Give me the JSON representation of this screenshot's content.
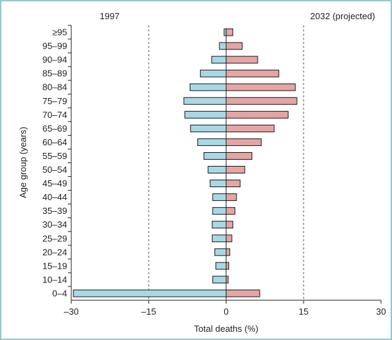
{
  "chart_data": {
    "type": "bar",
    "orientation": "horizontal",
    "categories": [
      "0–4",
      "10–14",
      "15–19",
      "20–24",
      "25–29",
      "30–34",
      "35–39",
      "40–44",
      "45–49",
      "50–54",
      "55–59",
      "60–64",
      "65–69",
      "70–74",
      "75–79",
      "80–84",
      "85–89",
      "90–94",
      "95–99",
      "≥95"
    ],
    "series": [
      {
        "name": "1997",
        "values": [
          -29.6,
          -2.6,
          -2.0,
          -2.2,
          -2.7,
          -2.7,
          -2.6,
          -2.6,
          -3.1,
          -3.5,
          -4.3,
          -5.5,
          -6.9,
          -8.0,
          -8.2,
          -7.0,
          -5.0,
          -2.8,
          -1.3,
          -0.4
        ]
      },
      {
        "name": "2032 (projected)",
        "values": [
          6.5,
          0.4,
          0.5,
          0.7,
          1.1,
          1.3,
          1.7,
          2.0,
          2.7,
          3.6,
          5.0,
          6.8,
          9.3,
          12.0,
          13.7,
          13.4,
          10.2,
          6.1,
          3.1,
          1.3
        ]
      }
    ],
    "colors": {
      "left": "#a8d8e6",
      "right": "#e6a5a5",
      "outline": "#1a1a1a",
      "frame": "#6fb7b7",
      "gridline": "#555555"
    },
    "title_left": "1997",
    "title_right": "2032 (projected)",
    "xlabel": "Total deaths (%)",
    "ylabel": "Age group (years)",
    "xlim": [
      -30,
      30
    ],
    "xticks": [
      {
        "value": -30,
        "label": "–30"
      },
      {
        "value": -15,
        "label": "–15"
      },
      {
        "value": 0,
        "label": "0"
      },
      {
        "value": 15,
        "label": "15"
      },
      {
        "value": 30,
        "label": "30"
      }
    ],
    "dashed_gridlines_at": [
      -15,
      15
    ],
    "legend": "none"
  }
}
